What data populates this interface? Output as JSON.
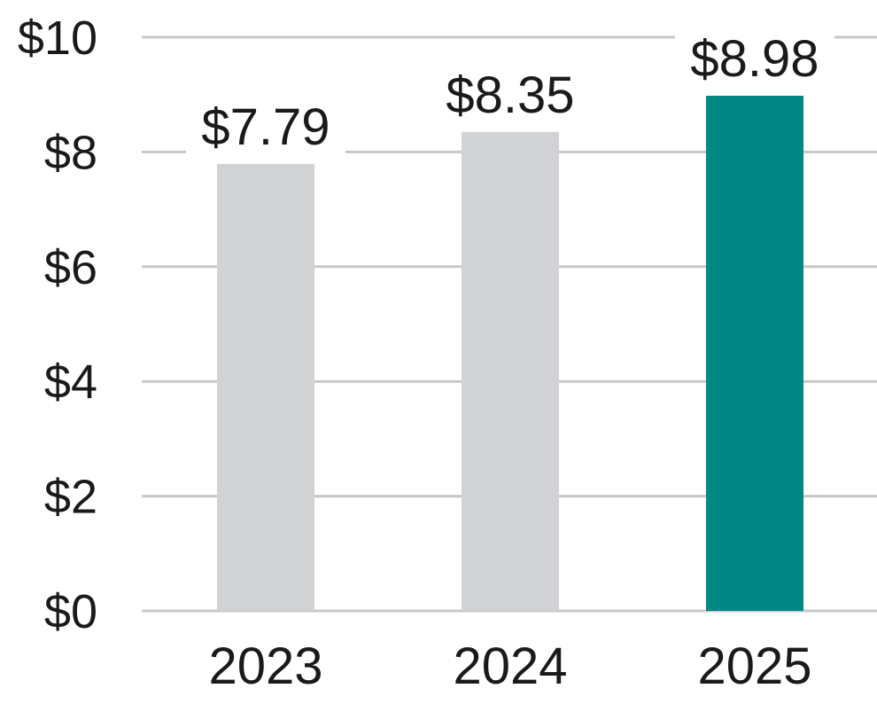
{
  "chart_data": {
    "type": "bar",
    "title": "",
    "xlabel": "",
    "ylabel": "",
    "categories": [
      "2023",
      "2024",
      "2025"
    ],
    "values": [
      7.79,
      8.35,
      8.98
    ],
    "value_labels": [
      "$7.79",
      "$8.35",
      "$8.98"
    ],
    "bar_colors": [
      "#d1d2d4",
      "#d1d2d4",
      "#008885"
    ],
    "ylim": [
      0,
      10
    ],
    "y_ticks": [
      0,
      2,
      4,
      6,
      8,
      10
    ],
    "y_tick_labels": [
      "$0",
      "$2",
      "$4",
      "$6",
      "$8",
      "$10"
    ],
    "grid": true,
    "grid_color": "#c8c8c8",
    "legend": "none"
  }
}
